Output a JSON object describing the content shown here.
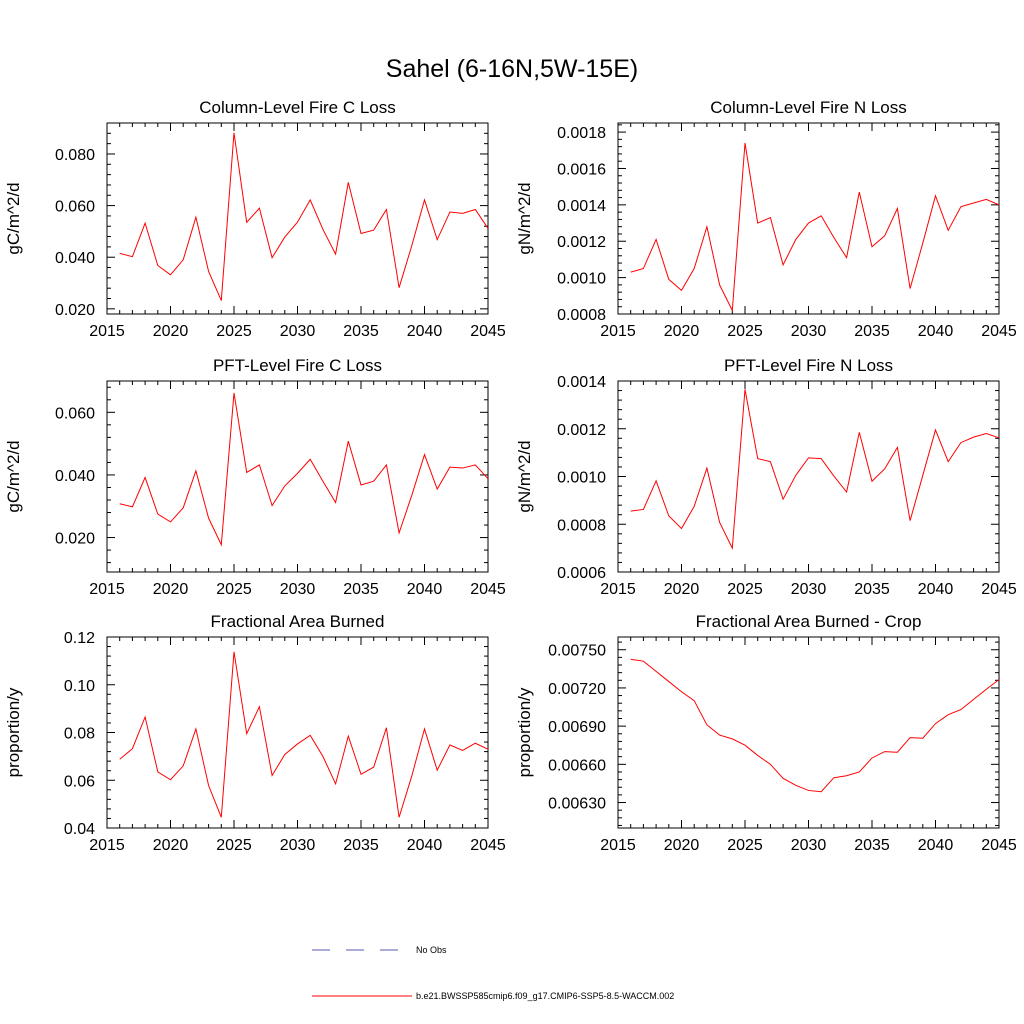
{
  "figure_title": "Sahel (6-16N,5W-15E)",
  "legend": {
    "entries": [
      {
        "label": "No Obs",
        "color": "#5a5ab4",
        "style": "dashed"
      },
      {
        "label": "b.e21.BWSSP585cmip6.f09_g17.CMIP6-SSP5-8.5-WACCM.002",
        "color": "#ff0000",
        "style": "solid"
      }
    ]
  },
  "chart_data": [
    {
      "type": "line",
      "title": "Column-Level Fire C Loss",
      "ylabel": "gC/m^2/d",
      "xlim": [
        2015,
        2045
      ],
      "ylim": [
        0.018,
        0.092
      ],
      "yticks": [
        0.02,
        0.04,
        0.06,
        0.08
      ],
      "ytick_labels": [
        "0.020",
        "0.040",
        "0.060",
        "0.080"
      ],
      "xticks": [
        2015,
        2020,
        2025,
        2030,
        2035,
        2040,
        2045
      ],
      "xtick_labels": [
        "2015",
        "2020",
        "2025",
        "2030",
        "2035",
        "2040",
        "2045"
      ],
      "series": [
        {
          "color": "#ff0000",
          "x": [
            2016,
            2017,
            2018,
            2019,
            2020,
            2021,
            2022,
            2023,
            2024,
            2025,
            2026,
            2027,
            2028,
            2029,
            2030,
            2031,
            2032,
            2033,
            2034,
            2035,
            2036,
            2037,
            2038,
            2039,
            2040,
            2041,
            2042,
            2043,
            2044,
            2045
          ],
          "values": [
            0.0415,
            0.0402,
            0.0532,
            0.0368,
            0.0332,
            0.039,
            0.0555,
            0.0345,
            0.0232,
            0.0882,
            0.0535,
            0.059,
            0.0398,
            0.0478,
            0.0536,
            0.0622,
            0.0508,
            0.0412,
            0.069,
            0.0492,
            0.0505,
            0.0585,
            0.0282,
            0.0445,
            0.0622,
            0.0468,
            0.0575,
            0.057,
            0.0585,
            0.0512
          ]
        }
      ]
    },
    {
      "type": "line",
      "title": "Column-Level Fire N Loss",
      "ylabel": "gN/m^2/d",
      "xlim": [
        2015,
        2045
      ],
      "ylim": [
        0.0008,
        0.00185
      ],
      "yticks": [
        0.0008,
        0.001,
        0.0012,
        0.0014,
        0.0016,
        0.0018
      ],
      "ytick_labels": [
        "0.0008",
        "0.0010",
        "0.0012",
        "0.0014",
        "0.0016",
        "0.0018"
      ],
      "xticks": [
        2015,
        2020,
        2025,
        2030,
        2035,
        2040,
        2045
      ],
      "xtick_labels": [
        "2015",
        "2020",
        "2025",
        "2030",
        "2035",
        "2040",
        "2045"
      ],
      "series": [
        {
          "color": "#ff0000",
          "x": [
            2016,
            2017,
            2018,
            2019,
            2020,
            2021,
            2022,
            2023,
            2024,
            2025,
            2026,
            2027,
            2028,
            2029,
            2030,
            2031,
            2032,
            2033,
            2034,
            2035,
            2036,
            2037,
            2038,
            2039,
            2040,
            2041,
            2042,
            2043,
            2044,
            2045
          ],
          "values": [
            0.00103,
            0.00105,
            0.00121,
            0.00099,
            0.00093,
            0.00105,
            0.00128,
            0.00096,
            0.00082,
            0.00174,
            0.0013,
            0.00133,
            0.00107,
            0.00121,
            0.0013,
            0.00134,
            0.00122,
            0.00111,
            0.00147,
            0.00117,
            0.00123,
            0.00138,
            0.00094,
            0.00119,
            0.00145,
            0.00126,
            0.00139,
            0.00141,
            0.00143,
            0.0014
          ]
        }
      ]
    },
    {
      "type": "line",
      "title": "PFT-Level Fire C Loss",
      "ylabel": "gC/m^2/d",
      "xlim": [
        2015,
        2045
      ],
      "ylim": [
        0.009,
        0.07
      ],
      "yticks": [
        0.02,
        0.04,
        0.06
      ],
      "ytick_labels": [
        "0.020",
        "0.040",
        "0.060"
      ],
      "xticks": [
        2015,
        2020,
        2025,
        2030,
        2035,
        2040,
        2045
      ],
      "xtick_labels": [
        "2015",
        "2020",
        "2025",
        "2030",
        "2035",
        "2040",
        "2045"
      ],
      "series": [
        {
          "color": "#ff0000",
          "x": [
            2016,
            2017,
            2018,
            2019,
            2020,
            2021,
            2022,
            2023,
            2024,
            2025,
            2026,
            2027,
            2028,
            2029,
            2030,
            2031,
            2032,
            2033,
            2034,
            2035,
            2036,
            2037,
            2038,
            2039,
            2040,
            2041,
            2042,
            2043,
            2044,
            2045
          ],
          "values": [
            0.0308,
            0.0298,
            0.0392,
            0.0275,
            0.025,
            0.0295,
            0.0413,
            0.0262,
            0.0177,
            0.0662,
            0.0408,
            0.0432,
            0.0302,
            0.0365,
            0.0405,
            0.045,
            0.038,
            0.0312,
            0.0508,
            0.0368,
            0.038,
            0.0432,
            0.0215,
            0.0335,
            0.0465,
            0.0355,
            0.0425,
            0.0422,
            0.0432,
            0.0388
          ]
        }
      ]
    },
    {
      "type": "line",
      "title": "PFT-Level Fire N Loss",
      "ylabel": "gN/m^2/d",
      "xlim": [
        2015,
        2045
      ],
      "ylim": [
        0.0006,
        0.0014
      ],
      "yticks": [
        0.0006,
        0.0008,
        0.001,
        0.0012,
        0.0014
      ],
      "ytick_labels": [
        "0.0006",
        "0.0008",
        "0.0010",
        "0.0012",
        "0.0014"
      ],
      "xticks": [
        2015,
        2020,
        2025,
        2030,
        2035,
        2040,
        2045
      ],
      "xtick_labels": [
        "2015",
        "2020",
        "2025",
        "2030",
        "2035",
        "2040",
        "2045"
      ],
      "series": [
        {
          "color": "#ff0000",
          "x": [
            2016,
            2017,
            2018,
            2019,
            2020,
            2021,
            2022,
            2023,
            2024,
            2025,
            2026,
            2027,
            2028,
            2029,
            2030,
            2031,
            2032,
            2033,
            2034,
            2035,
            2036,
            2037,
            2038,
            2039,
            2040,
            2041,
            2042,
            2043,
            2044,
            2045
          ],
          "values": [
            0.000855,
            0.000862,
            0.000982,
            0.000835,
            0.000782,
            0.000875,
            0.001035,
            0.000808,
            0.0007,
            0.001365,
            0.001075,
            0.001062,
            0.000905,
            0.001005,
            0.001078,
            0.001075,
            0.001002,
            0.000935,
            0.001185,
            0.00098,
            0.001032,
            0.001122,
            0.000815,
            0.001005,
            0.001195,
            0.001062,
            0.001142,
            0.001165,
            0.00118,
            0.001162
          ]
        }
      ]
    },
    {
      "type": "line",
      "title": "Fractional Area Burned",
      "ylabel": "proportion/y",
      "xlim": [
        2015,
        2045
      ],
      "ylim": [
        0.04,
        0.12
      ],
      "yticks": [
        0.04,
        0.06,
        0.08,
        0.1,
        0.12
      ],
      "ytick_labels": [
        "0.04",
        "0.06",
        "0.08",
        "0.10",
        "0.12"
      ],
      "xticks": [
        2015,
        2020,
        2025,
        2030,
        2035,
        2040,
        2045
      ],
      "xtick_labels": [
        "2015",
        "2020",
        "2025",
        "2030",
        "2035",
        "2040",
        "2045"
      ],
      "series": [
        {
          "color": "#ff0000",
          "x": [
            2016,
            2017,
            2018,
            2019,
            2020,
            2021,
            2022,
            2023,
            2024,
            2025,
            2026,
            2027,
            2028,
            2029,
            2030,
            2031,
            2032,
            2033,
            2034,
            2035,
            2036,
            2037,
            2038,
            2039,
            2040,
            2041,
            2042,
            2043,
            2044,
            2045
          ],
          "values": [
            0.0688,
            0.0732,
            0.0865,
            0.0635,
            0.0602,
            0.066,
            0.0815,
            0.0578,
            0.0445,
            0.1138,
            0.0795,
            0.0908,
            0.062,
            0.0708,
            0.0752,
            0.0788,
            0.07,
            0.0585,
            0.0785,
            0.0625,
            0.0655,
            0.082,
            0.0445,
            0.0618,
            0.0815,
            0.0642,
            0.0748,
            0.0725,
            0.0755,
            0.073
          ]
        }
      ]
    },
    {
      "type": "line",
      "title": "Fractional Area Burned - Crop",
      "ylabel": "proportion/y",
      "xlim": [
        2015,
        2045
      ],
      "ylim": [
        0.0061,
        0.0076
      ],
      "yticks": [
        0.0063,
        0.0066,
        0.0069,
        0.0072,
        0.0075
      ],
      "ytick_labels": [
        "0.00630",
        "0.00660",
        "0.00690",
        "0.00720",
        "0.00750"
      ],
      "xticks": [
        2015,
        2020,
        2025,
        2030,
        2035,
        2040,
        2045
      ],
      "xtick_labels": [
        "2015",
        "2020",
        "2025",
        "2030",
        "2035",
        "2040",
        "2045"
      ],
      "series": [
        {
          "color": "#ff0000",
          "x": [
            2016,
            2017,
            2018,
            2019,
            2020,
            2021,
            2022,
            2023,
            2024,
            2025,
            2026,
            2027,
            2028,
            2029,
            2030,
            2031,
            2032,
            2033,
            2034,
            2035,
            2036,
            2037,
            2038,
            2039,
            2040,
            2041,
            2042,
            2043,
            2044,
            2045
          ],
          "values": [
            0.007425,
            0.00741,
            0.00733,
            0.00725,
            0.00717,
            0.0071,
            0.00691,
            0.00683,
            0.0068,
            0.00675,
            0.00667,
            0.0066,
            0.00649,
            0.006435,
            0.006395,
            0.006385,
            0.006495,
            0.00651,
            0.00654,
            0.00665,
            0.0067,
            0.006695,
            0.00681,
            0.006805,
            0.00692,
            0.00699,
            0.00703,
            0.00711,
            0.00719,
            0.007265
          ]
        }
      ]
    }
  ]
}
